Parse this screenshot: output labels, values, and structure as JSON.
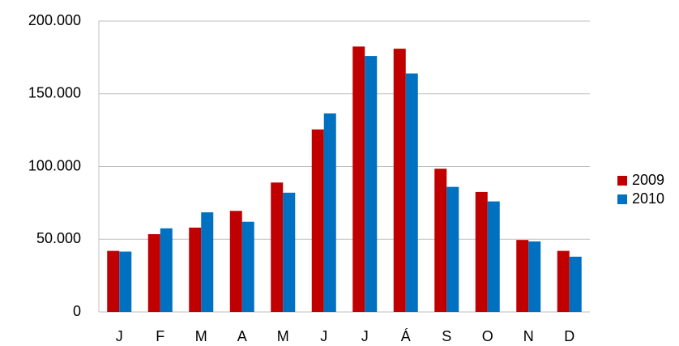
{
  "chart_data": {
    "type": "bar",
    "categories": [
      "J",
      "F",
      "M",
      "A",
      "M",
      "J",
      "J",
      "Á",
      "S",
      "O",
      "N",
      "D"
    ],
    "series": [
      {
        "name": "2009",
        "color": "#c00000",
        "values": [
          42000,
          53500,
          58000,
          69500,
          89000,
          125500,
          182500,
          181000,
          98500,
          82500,
          49500,
          42000
        ]
      },
      {
        "name": "2010",
        "color": "#0070c0",
        "values": [
          41500,
          57500,
          68500,
          62000,
          82000,
          136500,
          176000,
          164000,
          86000,
          76000,
          48500,
          38000
        ]
      }
    ],
    "ylim": [
      0,
      200000
    ],
    "yticks": [
      0,
      {
        "value": 50000,
        "label": "50.000"
      },
      {
        "value": 100000,
        "label": "100.000"
      },
      {
        "value": 150000,
        "label": "150.000"
      },
      {
        "value": 200000,
        "label": "200.000"
      }
    ],
    "grid": true,
    "legend": "right"
  }
}
